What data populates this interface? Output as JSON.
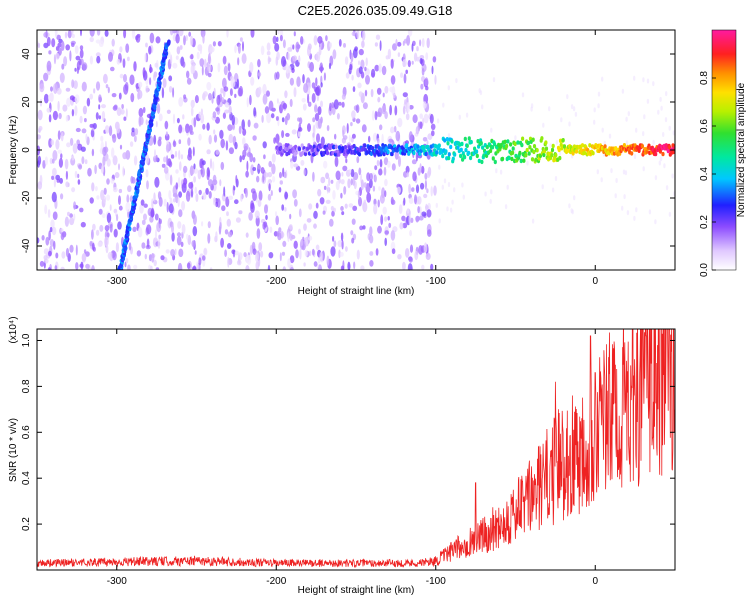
{
  "title": "C2E5.2026.035.09.49.G18",
  "chart_data": [
    {
      "type": "heatmap",
      "name": "frequency-vs-height spectrogram",
      "xlabel": "Height of straight line (km)",
      "ylabel": "Frequency (Hz)",
      "xlim": [
        -350,
        50
      ],
      "ylim": [
        -50,
        50
      ],
      "xticks": [
        -300,
        -200,
        -100,
        0
      ],
      "yticks": [
        -40,
        -20,
        0,
        20,
        40
      ],
      "colorbar": {
        "label": "Normalized spectral amplitude",
        "range": [
          0.0,
          1.0
        ],
        "ticks": [
          0.0,
          0.2,
          0.4,
          0.6,
          0.8
        ]
      },
      "features": [
        {
          "name": "diagonal streak",
          "from": [
            -298,
            -50
          ],
          "to": [
            -268,
            45
          ],
          "amplitude": 0.3
        },
        {
          "name": "near-zero line",
          "from": [
            -200,
            0
          ],
          "to": [
            50,
            0
          ],
          "amplitude_start": 0.15,
          "amplitude_end": 0.95
        },
        {
          "name": "noise region",
          "x_range": [
            -350,
            -100
          ],
          "amplitude": 0.1
        }
      ]
    },
    {
      "type": "line",
      "name": "SNR vs height",
      "xlabel": "Height of straight line (km)",
      "ylabel": "SNR (10 * v/v)",
      "y_multiplier": "(x10⁴)",
      "xlim": [
        -350,
        50
      ],
      "ylim": [
        0,
        1.05
      ],
      "xticks": [
        -300,
        -200,
        -100,
        0
      ],
      "yticks": [
        0.2,
        0.4,
        0.6,
        0.8,
        1.0
      ],
      "series": [
        {
          "name": "SNR",
          "color": "#ee2222",
          "x": [
            -350,
            -300,
            -250,
            -200,
            -150,
            -110,
            -100,
            -90,
            -80,
            -70,
            -60,
            -50,
            -40,
            -30,
            -20,
            -10,
            0,
            10,
            20,
            30,
            40,
            50
          ],
          "y": [
            0.03,
            0.035,
            0.04,
            0.03,
            0.03,
            0.03,
            0.04,
            0.08,
            0.12,
            0.15,
            0.2,
            0.25,
            0.32,
            0.4,
            0.48,
            0.52,
            0.62,
            0.68,
            0.75,
            0.82,
            0.86,
            0.87
          ]
        }
      ],
      "spikes": [
        {
          "x": -75,
          "y": 0.38
        },
        {
          "x": -25,
          "y": 0.82
        },
        {
          "x": -3,
          "y": 1.02
        },
        {
          "x": 0,
          "y": 0.86
        },
        {
          "x": 32,
          "y": 1.02
        },
        {
          "x": 39,
          "y": 0.98
        }
      ]
    }
  ]
}
